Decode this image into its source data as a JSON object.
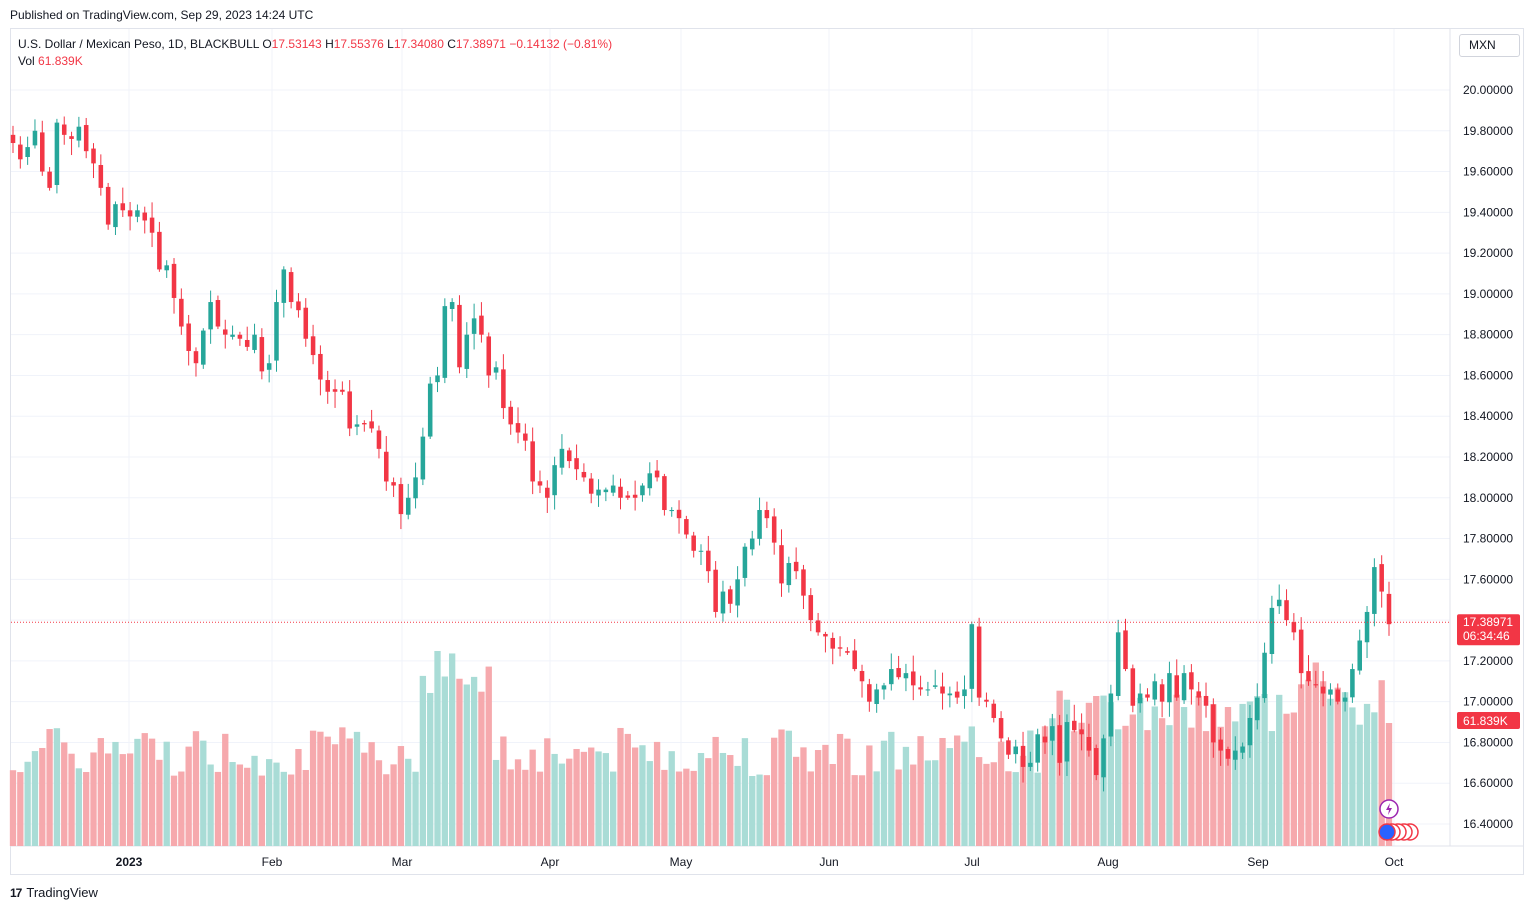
{
  "header": {
    "published": "Published on TradingView.com, Sep 29, 2023 14:24 UTC"
  },
  "legend": {
    "symbol": "U.S. Dollar / Mexican Peso, 1D, BLACKBULL",
    "o_label": "O",
    "o_value": "17.53143",
    "h_label": "H",
    "h_value": "17.55376",
    "l_label": "L",
    "l_value": "17.34080",
    "c_label": "C",
    "c_value": "17.38971",
    "change": "−0.14132 (−0.81%)",
    "vol_label": "Vol",
    "vol_value": "61.839K"
  },
  "currency_button": "MXN",
  "price_tag": {
    "price": "17.38971",
    "countdown": "06:34:46"
  },
  "volume_tag": "61.839K",
  "footer": {
    "brand": "TradingView"
  },
  "colors": {
    "up": "#26a69a",
    "down": "#f23645",
    "up_vol": "#a9dcd6",
    "down_vol": "#f6a9ad"
  },
  "chart_data": {
    "type": "candlestick",
    "y_axis_ticks": [
      "20.00000",
      "19.80000",
      "19.60000",
      "19.40000",
      "19.20000",
      "19.00000",
      "18.80000",
      "18.60000",
      "18.40000",
      "18.20000",
      "18.00000",
      "17.80000",
      "17.60000",
      "17.40000",
      "17.20000",
      "17.00000",
      "16.80000",
      "16.60000",
      "16.40000"
    ],
    "x_axis_labels": [
      "2023",
      "Feb",
      "Mar",
      "Apr",
      "May",
      "Jun",
      "Jul",
      "Aug",
      "Sep",
      "Oct"
    ],
    "ylim": [
      16.3,
      20.2
    ],
    "last_price": 17.38971,
    "closes": [
      19.74,
      19.66,
      19.72,
      19.8,
      19.6,
      19.52,
      19.84,
      19.78,
      19.76,
      19.82,
      19.7,
      19.64,
      19.52,
      19.34,
      19.44,
      19.41,
      19.38,
      19.41,
      19.36,
      19.3,
      19.12,
      19.14,
      18.98,
      18.84,
      18.72,
      18.66,
      18.82,
      18.96,
      18.84,
      18.8,
      18.8,
      18.78,
      18.74,
      18.8,
      18.62,
      18.66,
      18.96,
      19.12,
      18.96,
      18.92,
      18.78,
      18.7,
      18.58,
      18.52,
      18.52,
      18.52,
      18.34,
      18.36,
      18.36,
      18.34,
      18.24,
      18.08,
      18.06,
      17.92,
      18.0,
      18.1,
      18.3,
      18.56,
      18.6,
      18.94,
      18.96,
      18.64,
      18.8,
      18.88,
      18.8,
      18.6,
      18.64,
      18.44,
      18.36,
      18.32,
      18.28,
      18.08,
      18.06,
      18.0,
      18.16,
      18.24,
      18.18,
      18.14,
      18.1,
      18.02,
      18.04,
      18.04,
      18.06,
      18.0,
      18.0,
      18.0,
      18.06,
      18.12,
      18.1,
      17.94,
      17.94,
      17.9,
      17.82,
      17.74,
      17.74,
      17.64,
      17.44,
      17.54,
      17.48,
      17.6,
      17.76,
      17.8,
      17.94,
      17.9,
      17.78,
      17.58,
      17.68,
      17.64,
      17.52,
      17.4,
      17.34,
      17.32,
      17.26,
      17.26,
      17.24,
      17.16,
      17.1,
      17.0,
      17.06,
      17.08,
      17.16,
      17.12,
      17.14,
      17.08,
      17.06,
      17.06,
      17.08,
      17.04,
      17.04,
      17.02,
      17.06,
      17.38,
      17.02,
      17.0,
      16.92,
      16.82,
      16.74,
      16.78,
      16.68,
      16.7,
      16.84,
      16.8,
      16.88,
      16.7,
      16.9,
      16.86,
      16.84,
      16.76,
      16.64,
      16.82,
      17.04,
      17.34,
      17.16,
      16.98,
      17.04,
      17.02,
      17.1,
      17.0,
      17.14,
      17.02,
      17.14,
      17.06,
      17.02,
      16.98,
      16.8,
      16.76,
      16.72,
      16.76,
      16.78,
      16.92,
      17.02,
      17.24,
      17.46,
      17.5,
      17.4,
      17.34,
      17.14,
      17.1,
      17.08,
      17.04,
      17.06,
      17.0,
      17.02,
      17.16,
      17.3,
      17.44,
      17.66,
      17.54,
      17.38
    ]
  }
}
